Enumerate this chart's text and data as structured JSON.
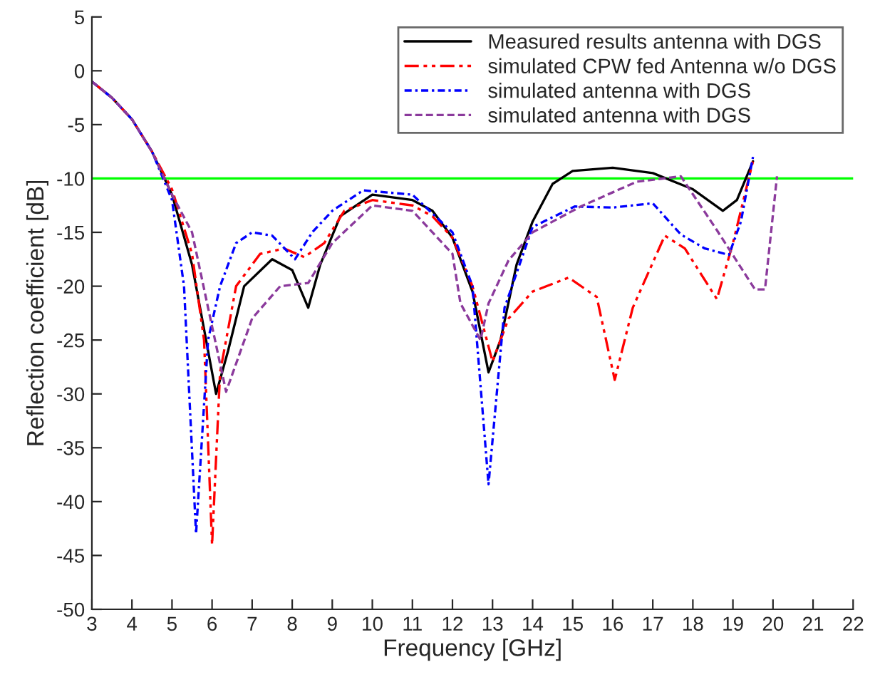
{
  "chart_data": {
    "type": "line",
    "xlabel": "Frequency [GHz]",
    "ylabel": "Reflection coefficient [dB]",
    "xlim": [
      3,
      22
    ],
    "xticks": [
      3,
      4,
      5,
      6,
      7,
      8,
      9,
      10,
      11,
      12,
      13,
      14,
      15,
      16,
      17,
      18,
      19,
      20,
      21,
      22
    ],
    "ylim": [
      -50,
      5
    ],
    "yticks": [
      5,
      0,
      -5,
      -10,
      -15,
      -20,
      -25,
      -30,
      -35,
      -40,
      -45,
      -50
    ],
    "grid": false,
    "legend": "top right",
    "marker": "none",
    "ref_lines": [
      {
        "axis": "y",
        "value": -10,
        "color": "#00ff00",
        "line_style": "solid"
      }
    ],
    "series": [
      {
        "name": "Measured results antenna with DGS",
        "color": "#000000",
        "line_style": "solid",
        "x": [
          3,
          3.5,
          4,
          4.5,
          5,
          5.5,
          5.8,
          6.1,
          6.4,
          6.8,
          7.5,
          8,
          8.4,
          8.7,
          9.2,
          10,
          11,
          11.5,
          12,
          12.5,
          12.9,
          13.2,
          13.6,
          14,
          14.5,
          15,
          16,
          17,
          18,
          18.75,
          19.1,
          19.5
        ],
        "values": [
          -1,
          -2.5,
          -4.5,
          -7.5,
          -11.5,
          -18,
          -24,
          -30,
          -26,
          -20,
          -17.5,
          -18.5,
          -22,
          -18,
          -13.5,
          -11.5,
          -12,
          -13,
          -15.5,
          -20.5,
          -28,
          -25,
          -18,
          -14,
          -10.5,
          -9.3,
          -9,
          -9.5,
          -11,
          -13,
          -12,
          -8.4
        ]
      },
      {
        "name": "simulated CPW fed Antenna w/o DGS",
        "color": "#ff0000",
        "line_style": "dashdotdot",
        "x": [
          3,
          3.5,
          4,
          4.5,
          5,
          5.5,
          5.8,
          6.0,
          6.2,
          6.6,
          7.2,
          7.8,
          8.3,
          8.8,
          9.3,
          10,
          11,
          11.5,
          12,
          12.5,
          13.0,
          13.4,
          14,
          14.9,
          15.6,
          16.05,
          16.5,
          17.3,
          17.8,
          18.6,
          19.0,
          19.5
        ],
        "values": [
          -1,
          -2.5,
          -4.5,
          -7.5,
          -11,
          -17,
          -25,
          -44,
          -28,
          -20,
          -17,
          -16.5,
          -17.3,
          -16,
          -13,
          -12,
          -12.5,
          -13.5,
          -15.5,
          -20,
          -27,
          -23,
          -20.5,
          -19.2,
          -21,
          -28.7,
          -22,
          -15.3,
          -16.5,
          -21.2,
          -16,
          -8.4
        ]
      },
      {
        "name": "simulated antenna with DGS",
        "color": "#0000ff",
        "line_style": "dashdot",
        "x": [
          3,
          3.5,
          4,
          4.5,
          5,
          5.3,
          5.6,
          5.9,
          6.2,
          6.6,
          7,
          7.5,
          8.07,
          8.5,
          9,
          9.77,
          11,
          12,
          12.5,
          12.9,
          13.3,
          14,
          15.05,
          16,
          17,
          17.7,
          18.3,
          18.9,
          19.2,
          19.5
        ],
        "values": [
          -1,
          -2.5,
          -4.5,
          -7.5,
          -12,
          -20,
          -43,
          -25,
          -20,
          -16,
          -15,
          -15.3,
          -17.5,
          -15,
          -13,
          -11.1,
          -11.5,
          -15,
          -20,
          -38.4,
          -22,
          -14.5,
          -12.6,
          -12.7,
          -12.3,
          -15.2,
          -16.5,
          -17.1,
          -14,
          -8
        ]
      },
      {
        "name": "simulated antenna with DGS",
        "color": "#8b3a9c",
        "line_style": "dashed",
        "x": [
          3,
          3.5,
          4,
          4.5,
          5,
          5.5,
          5.9,
          6.35,
          7,
          7.7,
          8.4,
          9,
          10,
          11,
          12,
          12.2,
          12.7,
          12.9,
          13.4,
          14,
          15.2,
          16.6,
          17.7,
          18.6,
          19.55,
          19.8,
          20.1
        ],
        "values": [
          -1,
          -2.5,
          -4.5,
          -7.5,
          -11.5,
          -15,
          -22,
          -29.8,
          -23,
          -20,
          -19.7,
          -16,
          -12.5,
          -13,
          -17,
          -21.6,
          -25,
          -21.6,
          -17.6,
          -15,
          -12.6,
          -10.3,
          -9.8,
          -14.8,
          -20.3,
          -20.3,
          -9.8
        ]
      }
    ]
  }
}
